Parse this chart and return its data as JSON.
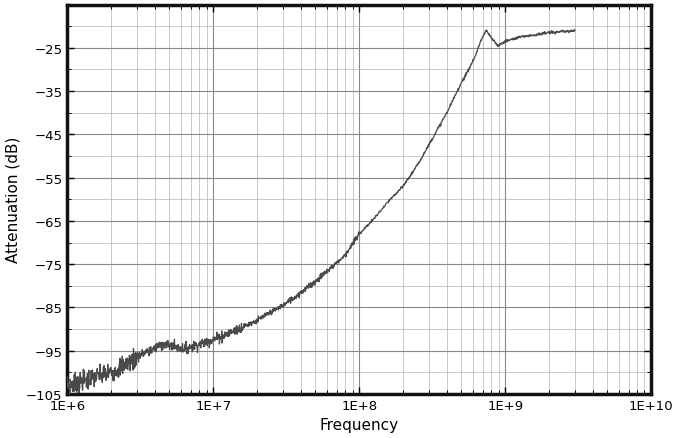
{
  "xlabel": "Frequency",
  "ylabel": "Attenuation (dB)",
  "xlim_log": [
    6,
    10
  ],
  "ylim": [
    -105,
    -15
  ],
  "yticks": [
    -105,
    -95,
    -85,
    -75,
    -65,
    -55,
    -45,
    -35,
    -25
  ],
  "xtick_labels": [
    "1E+6",
    "1E+7",
    "1E+8",
    "1E+9",
    "1E+10"
  ],
  "xtick_vals": [
    1000000.0,
    10000000.0,
    100000000.0,
    1000000000.0,
    10000000000.0
  ],
  "background_color": "#ffffff",
  "line_color": "#4a4a4a",
  "grid_major_color": "#888888",
  "grid_minor_color": "#aaaaaa",
  "border_color": "#111111",
  "border_linewidth": 2.5,
  "figsize": [
    6.79,
    4.39
  ],
  "dpi": 100
}
